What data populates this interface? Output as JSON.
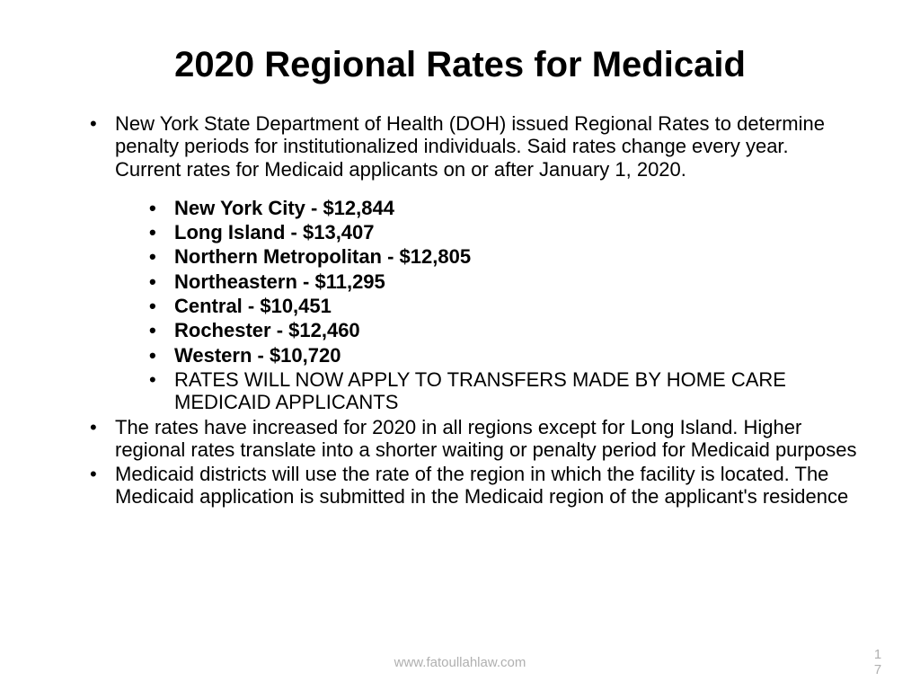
{
  "title": "2020 Regional Rates for Medicaid",
  "intro": "New York State Department of Health (DOH) issued Regional Rates to determine penalty periods for institutionalized individuals. Said rates change every year. Current rates for Medicaid applicants on or after January 1, 2020.",
  "rates": [
    "New York City - $12,844",
    "Long Island - $13,407",
    "Northern Metropolitan - $12,805",
    "Northeastern - $11,295",
    "Central - $10,451",
    "Rochester - $12,460",
    "Western - $10,720"
  ],
  "note": "RATES WILL NOW APPLY TO TRANSFERS MADE BY HOME CARE MEDICAID APPLICANTS",
  "para2": "The rates have increased for 2020 in all regions except for Long Island. Higher regional rates translate into a shorter waiting or penalty period for Medicaid purposes",
  "para3": "Medicaid districts will use the rate of the region in which the facility is located. The Medicaid application is submitted in the Medicaid region of the applicant's residence",
  "footer_url": "www.fatoullahlaw.com",
  "page_d1": "1",
  "page_d2": "7"
}
